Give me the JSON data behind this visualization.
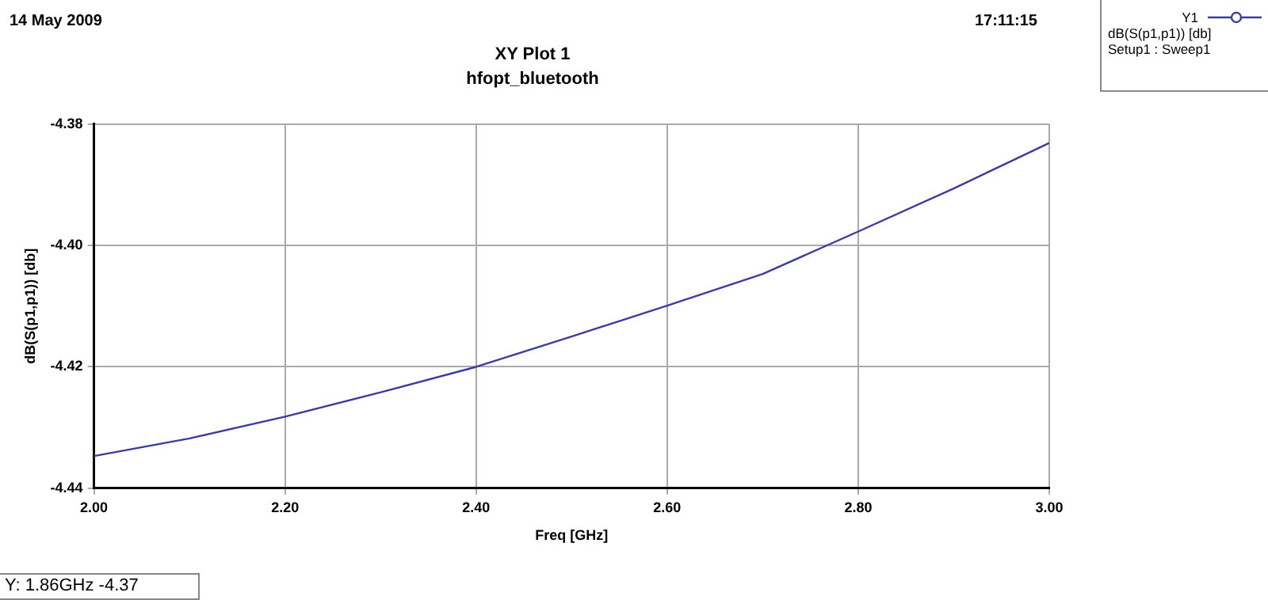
{
  "chart_data": {
    "type": "line",
    "title": "XY Plot 1",
    "subtitle": "hfopt_bluetooth",
    "xlabel": "Freq [GHz]",
    "ylabel": "dB(S(p1,p1)) [db]",
    "legend_title": "Y1",
    "annotations": [
      "14 May 2009",
      "17:11:15",
      "Y: 1.86GHz -4.37",
      "Setup1 : Sweep1"
    ],
    "x": [
      2.0,
      2.1,
      2.2,
      2.3,
      2.4,
      2.5,
      2.6,
      2.7,
      2.8,
      2.9,
      3.0
    ],
    "series": [
      {
        "name": "dB(S(p1,p1)) [db]",
        "color": "#3c3ca0",
        "values": [
          -4.4347,
          -4.4318,
          -4.4282,
          -4.4242,
          -4.42,
          -4.415,
          -4.4099,
          -4.4047,
          -4.3977,
          -4.3906,
          -4.3831
        ]
      }
    ],
    "xlim": [
      2.0,
      3.0
    ],
    "ylim": [
      -4.44,
      -4.38
    ],
    "xticks": [
      {
        "value": 2.0,
        "label": "2.00"
      },
      {
        "value": 2.2,
        "label": "2.20"
      },
      {
        "value": 2.4,
        "label": "2.40"
      },
      {
        "value": 2.6,
        "label": "2.60"
      },
      {
        "value": 2.8,
        "label": "2.80"
      },
      {
        "value": 3.0,
        "label": "3.00"
      }
    ],
    "yticks": [
      {
        "value": -4.44,
        "label": "-4.44"
      },
      {
        "value": -4.42,
        "label": "-4.42"
      },
      {
        "value": -4.4,
        "label": "-4.40"
      },
      {
        "value": -4.38,
        "label": "-4.38"
      }
    ],
    "grid": true,
    "legend": "top right",
    "line_style": "solid"
  }
}
